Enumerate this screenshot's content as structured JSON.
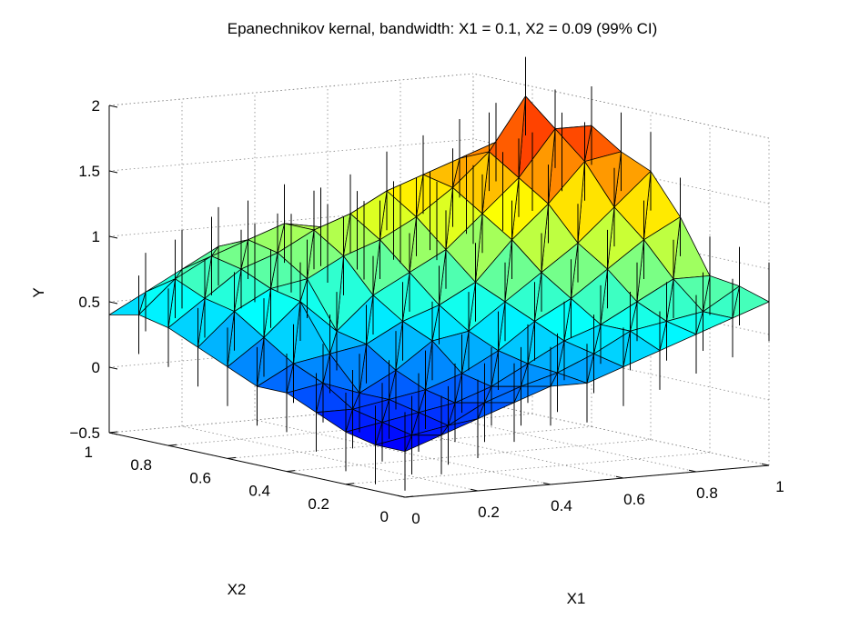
{
  "chart_data": {
    "type": "surface3d",
    "title": "Epanechnikov kernal, bandwidth: X1 = 0.1, X2 = 0.09 (99% CI)",
    "xlabel": "X1",
    "ylabel": "X2",
    "zlabel": "Y",
    "xlim": [
      0,
      1
    ],
    "ylim": [
      0,
      1
    ],
    "zlim": [
      -0.5,
      2
    ],
    "x_ticks": [
      "0",
      "0.2",
      "0.4",
      "0.6",
      "0.8",
      "1"
    ],
    "y_ticks": [
      "0",
      "0.2",
      "0.4",
      "0.6",
      "0.8",
      "1"
    ],
    "z_ticks": [
      "−0.5",
      "0",
      "0.5",
      "1",
      "1.5",
      "2"
    ],
    "x_tick_values": [
      0,
      0.2,
      0.4,
      0.6,
      0.8,
      1
    ],
    "y_tick_values": [
      0,
      0.2,
      0.4,
      0.6,
      0.8,
      1
    ],
    "z_tick_values": [
      -0.5,
      0,
      0.5,
      1,
      1.5,
      2
    ],
    "grid": true,
    "colormap": "jet",
    "colors": {
      "edge": "#000000",
      "grid": "#888888",
      "errorbar": "#000000"
    },
    "grid_x": [
      0,
      0.1,
      0.2,
      0.3,
      0.4,
      0.5,
      0.6,
      0.7,
      0.8,
      0.9,
      1.0
    ],
    "grid_y": [
      0,
      0.1,
      0.2,
      0.3,
      0.4,
      0.5,
      0.6,
      0.7,
      0.8,
      0.9,
      1.0
    ],
    "z_values": [
      [
        -0.15,
        -0.05,
        0.05,
        0.15,
        0.25,
        0.25,
        0.35,
        0.45,
        0.55,
        0.65,
        0.75
      ],
      [
        -0.15,
        -0.1,
        -0.05,
        0.1,
        0.2,
        0.28,
        0.4,
        0.55,
        0.6,
        0.65,
        0.82
      ],
      [
        -0.1,
        -0.05,
        0.0,
        0.05,
        0.15,
        0.3,
        0.45,
        0.55,
        0.7,
        0.85,
        0.85
      ],
      [
        0.0,
        0.0,
        0.05,
        0.1,
        0.2,
        0.35,
        0.55,
        0.7,
        0.9,
        1.1,
        1.25
      ],
      [
        0.1,
        0.15,
        0.05,
        0.2,
        0.4,
        0.45,
        0.65,
        0.85,
        1.05,
        1.3,
        1.55
      ],
      [
        0.1,
        0.25,
        0.3,
        0.35,
        0.5,
        0.6,
        0.75,
        1.05,
        1.3,
        1.6,
        1.65
      ],
      [
        0.2,
        0.4,
        0.65,
        0.4,
        0.65,
        0.8,
        0.95,
        1.2,
        1.45,
        1.8,
        1.8
      ],
      [
        0.3,
        0.55,
        0.7,
        0.75,
        0.9,
        1.0,
        1.15,
        1.35,
        1.6,
        2.0,
        1.55
      ],
      [
        0.4,
        0.6,
        0.8,
        0.9,
        1.05,
        1.15,
        1.3,
        1.4,
        1.5,
        1.6,
        1.35
      ],
      [
        0.45,
        0.7,
        0.85,
        0.95,
        1.05,
        1.0,
        0.95,
        1.0,
        1.05,
        1.15,
        1.15
      ],
      [
        0.4,
        0.55,
        0.7,
        0.85,
        0.7,
        0.75,
        0.8,
        0.8,
        0.9,
        0.9,
        1.0
      ]
    ],
    "error_halfwidth": 0.3
  }
}
